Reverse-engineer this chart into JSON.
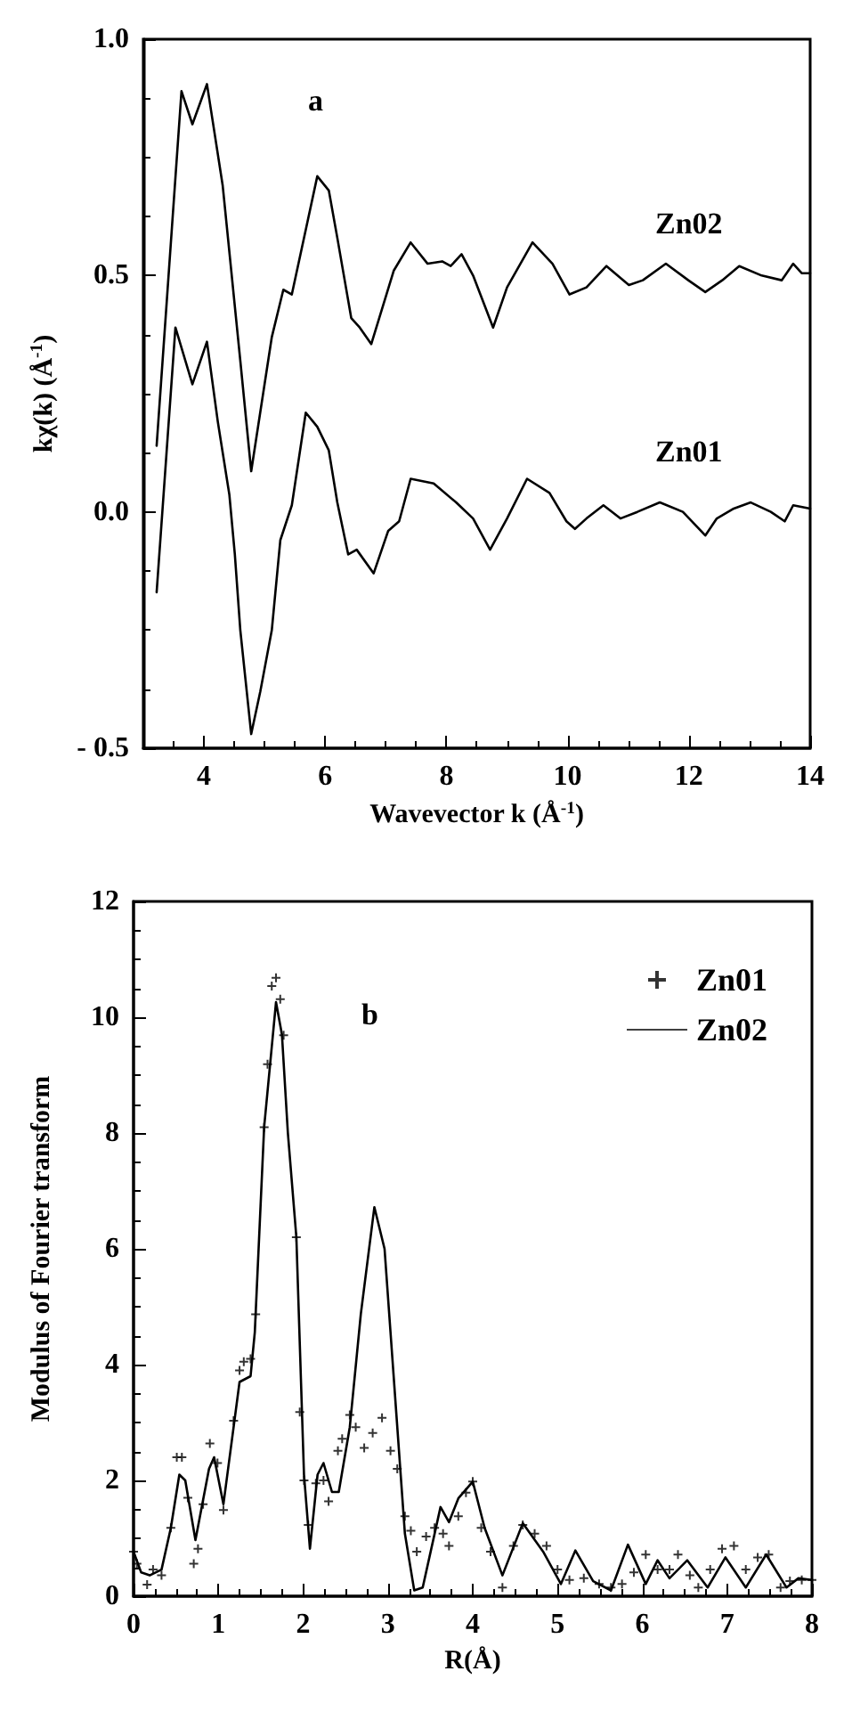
{
  "chart_data": [
    {
      "type": "line",
      "title": null,
      "annotations": [
        "a"
      ],
      "xlabel": "Wavevector k (Å$^{-1}$)",
      "ylabel": "kχ(k) (Å$^{-1}$)",
      "xlim": [
        3,
        14
      ],
      "xticks": [
        4,
        6,
        8,
        10,
        12,
        14
      ],
      "ylim": [
        -0.5,
        1.0
      ],
      "yticks": [
        {
          "value": -0.5,
          "label": "- 0.5"
        },
        {
          "value": 0,
          "label": "0.0"
        },
        {
          "value": 0.5,
          "label": "0.5"
        },
        {
          "value": 1.0,
          "label": "1.0"
        }
      ],
      "grid": false,
      "legend": false,
      "marker": "none",
      "line_style": "solid",
      "series": [
        {
          "name": "Zn02",
          "color": "#000000",
          "x": [
            3.22,
            3.63,
            3.81,
            4.05,
            4.31,
            4.6,
            4.78,
            5.12,
            5.31,
            5.45,
            5.87,
            6.06,
            6.2,
            6.43,
            6.57,
            6.76,
            7.13,
            7.41,
            7.69,
            7.93,
            8.07,
            8.25,
            8.44,
            8.77,
            9.0,
            9.42,
            9.75,
            10.03,
            10.31,
            10.64,
            11.01,
            11.24,
            11.62,
            11.99,
            12.27,
            12.55,
            12.83,
            13.2,
            13.53,
            13.72,
            13.86,
            14
          ],
          "values": [
            0.14,
            0.89,
            0.82,
            0.905,
            0.69,
            0.32,
            0.086,
            0.37,
            0.47,
            0.46,
            0.71,
            0.68,
            0.58,
            0.41,
            0.39,
            0.355,
            0.51,
            0.57,
            0.525,
            0.53,
            0.52,
            0.545,
            0.5,
            0.39,
            0.475,
            0.57,
            0.525,
            0.46,
            0.475,
            0.52,
            0.48,
            0.49,
            0.525,
            0.49,
            0.465,
            0.49,
            0.52,
            0.5,
            0.49,
            0.525,
            0.505,
            0.505
          ]
        },
        {
          "name": "Zn01",
          "color": "#000000",
          "x": [
            3.22,
            3.53,
            3.81,
            4.05,
            4.23,
            4.42,
            4.51,
            4.6,
            4.78,
            4.93,
            5.12,
            5.26,
            5.45,
            5.68,
            5.87,
            6.06,
            6.2,
            6.38,
            6.52,
            6.8,
            7.04,
            7.22,
            7.41,
            7.79,
            8.16,
            8.44,
            8.72,
            9.0,
            9.33,
            9.7,
            9.98,
            10.12,
            10.31,
            10.59,
            10.87,
            11.15,
            11.52,
            11.9,
            12.27,
            12.46,
            12.74,
            13.02,
            13.35,
            13.58,
            13.72,
            14
          ],
          "values": [
            -0.17,
            0.39,
            0.27,
            0.36,
            0.19,
            0.036,
            -0.09,
            -0.25,
            -0.47,
            -0.38,
            -0.25,
            -0.06,
            0.014,
            0.21,
            0.18,
            0.13,
            0.02,
            -0.09,
            -0.08,
            -0.13,
            -0.04,
            -0.02,
            0.07,
            0.06,
            0.02,
            -0.014,
            -0.08,
            -0.014,
            0.07,
            0.04,
            -0.02,
            -0.036,
            -0.014,
            0.014,
            -0.014,
            0,
            0.02,
            0,
            -0.05,
            -0.014,
            0.007,
            0.02,
            0,
            -0.02,
            0.014,
            0.007
          ]
        }
      ]
    },
    {
      "type": "line",
      "title": null,
      "annotations": [
        "b"
      ],
      "xlabel": "R(Å)",
      "ylabel": "Modulus of Fourier transform",
      "xlim": [
        0,
        8
      ],
      "xticks": [
        0,
        1,
        2,
        3,
        4,
        5,
        6,
        7,
        8
      ],
      "ylim": [
        0,
        12
      ],
      "yticks": [
        0,
        2,
        4,
        6,
        8,
        10,
        12
      ],
      "grid": false,
      "legend": "top right",
      "series": [
        {
          "name": "Zn01",
          "type": "scatter",
          "marker": "cross",
          "color": "#000000",
          "x": [
            0,
            0.04,
            0.16,
            0.23,
            0.33,
            0.44,
            0.51,
            0.57,
            0.64,
            0.71,
            0.76,
            0.82,
            0.9,
            0.99,
            1.06,
            1.18,
            1.25,
            1.3,
            1.38,
            1.44,
            1.54,
            1.58,
            1.63,
            1.68,
            1.73,
            1.77,
            1.92,
            1.96,
            2.01,
            2.06,
            2.15,
            2.24,
            2.3,
            2.41,
            2.46,
            2.55,
            2.62,
            2.72,
            2.82,
            2.93,
            3.03,
            3.11,
            3.2,
            3.27,
            3.34,
            3.45,
            3.55,
            3.65,
            3.72,
            3.83,
            3.92,
            4.0,
            4.1,
            4.21,
            4.35,
            4.48,
            4.59,
            4.73,
            4.87,
            5.0,
            5.14,
            5.31,
            5.49,
            5.63,
            5.76,
            5.9,
            6.04,
            6.18,
            6.32,
            6.42,
            6.56,
            6.66,
            6.8,
            6.94,
            7.08,
            7.22,
            7.36,
            7.49,
            7.63,
            7.74,
            7.88,
            8
          ],
          "values": [
            0.77,
            0.56,
            0.2,
            0.46,
            0.36,
            1.18,
            2.4,
            2.4,
            1.7,
            0.56,
            0.82,
            1.59,
            2.64,
            2.3,
            1.49,
            3.03,
            3.9,
            4.05,
            4.1,
            4.87,
            8.1,
            9.19,
            10.54,
            10.68,
            10.31,
            9.69,
            6.2,
            3.18,
            2.0,
            1.23,
            1.95,
            2.0,
            1.64,
            2.51,
            2.72,
            3.13,
            2.92,
            2.56,
            2.82,
            3.08,
            2.51,
            2.2,
            1.38,
            1.13,
            0.77,
            1.03,
            1.18,
            1.08,
            0.87,
            1.38,
            1.79,
            1.98,
            1.18,
            0.77,
            0.15,
            0.87,
            1.23,
            1.08,
            0.87,
            0.46,
            0.28,
            0.31,
            0.21,
            0.15,
            0.21,
            0.41,
            0.72,
            0.46,
            0.46,
            0.72,
            0.36,
            0.15,
            0.46,
            0.82,
            0.87,
            0.46,
            0.67,
            0.72,
            0.15,
            0.26,
            0.28,
            0.28
          ]
        },
        {
          "name": "Zn02",
          "type": "line",
          "marker": "none",
          "line_style": "solid",
          "color": "#000000",
          "x": [
            0,
            0.09,
            0.19,
            0.33,
            0.44,
            0.54,
            0.61,
            0.73,
            0.89,
            0.95,
            1.06,
            1.18,
            1.25,
            1.38,
            1.43,
            1.54,
            1.68,
            1.75,
            1.82,
            1.92,
            2.01,
            2.08,
            2.17,
            2.24,
            2.34,
            2.42,
            2.55,
            2.68,
            2.84,
            2.96,
            3.1,
            3.2,
            3.31,
            3.41,
            3.62,
            3.72,
            3.83,
            4.0,
            4.14,
            4.35,
            4.59,
            4.83,
            5.04,
            5.21,
            5.42,
            5.63,
            5.83,
            6.04,
            6.18,
            6.32,
            6.53,
            6.77,
            6.98,
            7.22,
            7.46,
            7.7,
            7.84,
            8
          ],
          "values": [
            0.77,
            0.41,
            0.36,
            0.46,
            1.18,
            2.1,
            2.0,
            0.97,
            2.2,
            2.4,
            1.59,
            2.92,
            3.7,
            3.8,
            4.56,
            8.1,
            10.26,
            9.7,
            8.0,
            6.2,
            2.1,
            0.82,
            2.1,
            2.3,
            1.8,
            1.8,
            2.92,
            4.87,
            6.72,
            6.0,
            3.13,
            1.08,
            0.1,
            0.15,
            1.54,
            1.28,
            1.69,
            1.98,
            1.18,
            0.36,
            1.26,
            0.77,
            0.21,
            0.79,
            0.26,
            0.1,
            0.89,
            0.21,
            0.62,
            0.31,
            0.62,
            0.15,
            0.67,
            0.15,
            0.72,
            0.15,
            0.31,
            0.28
          ]
        }
      ]
    }
  ]
}
